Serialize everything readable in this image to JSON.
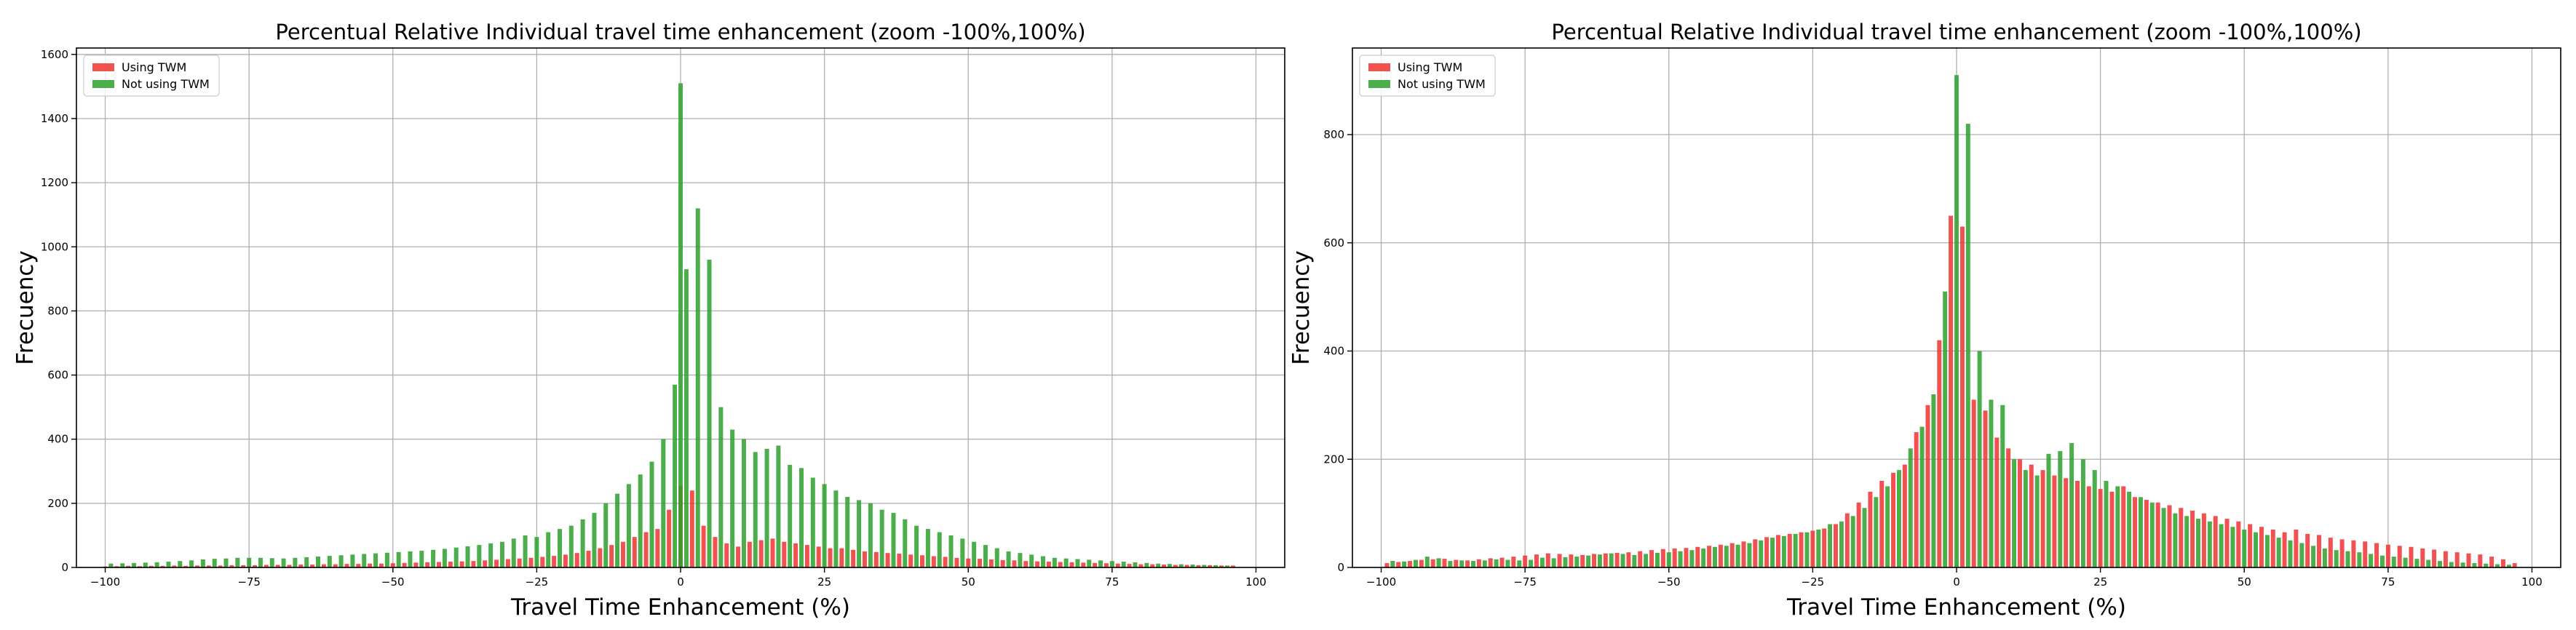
{
  "colors": {
    "using_twm": "#f03232",
    "not_using_twm": "#2ca02c"
  },
  "chart_data": [
    {
      "type": "bar",
      "title": "Percentual Relative Individual travel time enhancement (zoom -100%,100%)",
      "xlabel": "Travel Time Enhancement (%)",
      "ylabel": "Frecuency",
      "xlim": [
        -105,
        105
      ],
      "ylim": [
        0,
        1620
      ],
      "xticks": [
        -100,
        -75,
        -50,
        -25,
        0,
        25,
        50,
        75,
        100
      ],
      "yticks": [
        0,
        200,
        400,
        600,
        800,
        1000,
        1200,
        1400,
        1600
      ],
      "grid": true,
      "legend_position": "top-left",
      "bin_width": 2.0,
      "series": [
        {
          "name": "Using TWM",
          "color": "#f03232",
          "x": [
            -100,
            -98,
            -96,
            -94,
            -92,
            -90,
            -88,
            -86,
            -84,
            -82,
            -80,
            -78,
            -76,
            -74,
            -72,
            -70,
            -68,
            -66,
            -64,
            -62,
            -60,
            -58,
            -56,
            -54,
            -52,
            -50,
            -48,
            -46,
            -44,
            -42,
            -40,
            -38,
            -36,
            -34,
            -32,
            -30,
            -28,
            -26,
            -24,
            -22,
            -20,
            -18,
            -16,
            -14,
            -12,
            -10,
            -8,
            -6,
            -4,
            -2,
            0,
            2,
            4,
            6,
            8,
            10,
            12,
            14,
            16,
            18,
            20,
            22,
            24,
            26,
            28,
            30,
            32,
            34,
            36,
            38,
            40,
            42,
            44,
            46,
            48,
            50,
            52,
            54,
            56,
            58,
            60,
            62,
            64,
            66,
            68,
            70,
            72,
            74,
            76,
            78,
            80,
            82,
            84,
            86,
            88,
            90,
            92,
            94,
            96
          ],
          "values": [
            3,
            4,
            5,
            4,
            5,
            5,
            6,
            5,
            6,
            6,
            6,
            7,
            7,
            7,
            8,
            8,
            8,
            9,
            9,
            10,
            10,
            11,
            11,
            12,
            12,
            13,
            14,
            15,
            16,
            17,
            18,
            19,
            20,
            22,
            24,
            26,
            28,
            30,
            33,
            36,
            40,
            45,
            52,
            60,
            70,
            80,
            95,
            110,
            120,
            180,
            255,
            240,
            130,
            95,
            75,
            65,
            80,
            85,
            90,
            80,
            75,
            70,
            65,
            60,
            60,
            55,
            50,
            48,
            45,
            43,
            40,
            38,
            35,
            33,
            30,
            28,
            27,
            25,
            23,
            22,
            20,
            19,
            18,
            17,
            16,
            15,
            14,
            13,
            12,
            11,
            10,
            10,
            9,
            8,
            8,
            7,
            7,
            6,
            6
          ]
        },
        {
          "name": "Not using TWM",
          "color": "#2ca02c",
          "x": [
            -99,
            -97,
            -95,
            -93,
            -91,
            -89,
            -87,
            -85,
            -83,
            -81,
            -79,
            -77,
            -75,
            -73,
            -71,
            -69,
            -67,
            -65,
            -63,
            -61,
            -59,
            -57,
            -55,
            -53,
            -51,
            -49,
            -47,
            -45,
            -43,
            -41,
            -39,
            -37,
            -35,
            -33,
            -31,
            -29,
            -27,
            -25,
            -23,
            -21,
            -19,
            -17,
            -15,
            -13,
            -11,
            -9,
            -7,
            -5,
            -3,
            -1,
            0,
            1,
            3,
            5,
            7,
            9,
            11,
            13,
            15,
            17,
            19,
            21,
            23,
            25,
            27,
            29,
            31,
            33,
            35,
            37,
            39,
            41,
            43,
            45,
            47,
            49,
            51,
            53,
            55,
            57,
            59,
            61,
            63,
            65,
            67,
            69,
            71,
            73,
            75,
            77,
            79,
            81,
            83,
            85,
            87,
            89,
            91,
            93,
            95
          ],
          "values": [
            12,
            13,
            14,
            15,
            16,
            18,
            20,
            22,
            25,
            27,
            28,
            30,
            30,
            30,
            29,
            28,
            30,
            32,
            34,
            36,
            38,
            40,
            42,
            44,
            46,
            48,
            50,
            52,
            55,
            58,
            62,
            66,
            70,
            75,
            80,
            90,
            100,
            95,
            110,
            120,
            130,
            150,
            170,
            200,
            230,
            260,
            290,
            330,
            400,
            570,
            1510,
            930,
            1120,
            960,
            500,
            430,
            400,
            360,
            370,
            380,
            320,
            310,
            280,
            260,
            240,
            220,
            210,
            200,
            180,
            170,
            150,
            130,
            120,
            110,
            100,
            90,
            80,
            70,
            60,
            50,
            45,
            40,
            35,
            30,
            28,
            26,
            24,
            22,
            20,
            18,
            16,
            14,
            12,
            11,
            10,
            9,
            8,
            7,
            6
          ]
        }
      ]
    },
    {
      "type": "bar",
      "title": "Percentual Relative Individual travel time enhancement (zoom -100%,100%)",
      "xlabel": "Travel Time Enhancement (%)",
      "ylabel": "Frecuency",
      "xlim": [
        -105,
        105
      ],
      "ylim": [
        0,
        960
      ],
      "xticks": [
        -100,
        -75,
        -50,
        -25,
        0,
        25,
        50,
        75,
        100
      ],
      "yticks": [
        0,
        200,
        400,
        600,
        800
      ],
      "grid": true,
      "legend_position": "top-left",
      "bin_width": 2.0,
      "series": [
        {
          "name": "Using TWM",
          "color": "#f03232",
          "x": [
            -99,
            -97,
            -95,
            -93,
            -91,
            -89,
            -87,
            -85,
            -83,
            -81,
            -79,
            -77,
            -75,
            -73,
            -71,
            -69,
            -67,
            -65,
            -63,
            -61,
            -59,
            -57,
            -55,
            -53,
            -51,
            -49,
            -47,
            -45,
            -43,
            -41,
            -39,
            -37,
            -35,
            -33,
            -31,
            -29,
            -27,
            -25,
            -23,
            -21,
            -19,
            -17,
            -15,
            -13,
            -11,
            -9,
            -7,
            -5,
            -3,
            -1,
            1,
            3,
            5,
            7,
            9,
            11,
            13,
            15,
            17,
            19,
            21,
            23,
            25,
            27,
            29,
            31,
            33,
            35,
            37,
            39,
            41,
            43,
            45,
            47,
            49,
            51,
            53,
            55,
            57,
            59,
            61,
            63,
            65,
            67,
            69,
            71,
            73,
            75,
            77,
            79,
            81,
            83,
            85,
            87,
            89,
            91,
            93,
            95,
            97
          ],
          "values": [
            8,
            10,
            12,
            14,
            15,
            16,
            14,
            13,
            15,
            17,
            18,
            20,
            22,
            24,
            26,
            25,
            24,
            23,
            25,
            26,
            27,
            28,
            30,
            32,
            34,
            35,
            36,
            38,
            40,
            42,
            45,
            48,
            52,
            56,
            60,
            62,
            65,
            68,
            72,
            80,
            100,
            120,
            140,
            160,
            175,
            190,
            250,
            300,
            420,
            650,
            630,
            310,
            290,
            240,
            220,
            200,
            190,
            180,
            170,
            165,
            160,
            150,
            145,
            140,
            150,
            130,
            125,
            120,
            115,
            110,
            105,
            100,
            95,
            90,
            85,
            80,
            75,
            70,
            65,
            70,
            62,
            60,
            55,
            52,
            50,
            48,
            45,
            42,
            40,
            38,
            35,
            33,
            30,
            28,
            26,
            24,
            20,
            15,
            8
          ]
        },
        {
          "name": "Not using TWM",
          "color": "#2ca02c",
          "x": [
            -98,
            -96,
            -94,
            -92,
            -90,
            -88,
            -86,
            -84,
            -82,
            -80,
            -78,
            -76,
            -74,
            -72,
            -70,
            -68,
            -66,
            -64,
            -62,
            -60,
            -58,
            -56,
            -54,
            -52,
            -50,
            -48,
            -46,
            -44,
            -42,
            -40,
            -38,
            -36,
            -34,
            -32,
            -30,
            -28,
            -26,
            -24,
            -22,
            -20,
            -18,
            -16,
            -14,
            -12,
            -10,
            -8,
            -6,
            -4,
            -2,
            0,
            2,
            4,
            6,
            8,
            10,
            12,
            14,
            16,
            18,
            20,
            22,
            24,
            26,
            28,
            30,
            32,
            34,
            36,
            38,
            40,
            42,
            44,
            46,
            48,
            50,
            52,
            54,
            56,
            58,
            60,
            62,
            64,
            66,
            68,
            70,
            72,
            74,
            76,
            78,
            80,
            82,
            84,
            86,
            88,
            90,
            92,
            94,
            96
          ],
          "values": [
            12,
            11,
            14,
            20,
            17,
            12,
            13,
            12,
            13,
            15,
            14,
            13,
            14,
            18,
            17,
            19,
            20,
            22,
            24,
            26,
            25,
            23,
            25,
            27,
            28,
            30,
            32,
            35,
            38,
            40,
            42,
            45,
            50,
            55,
            58,
            62,
            65,
            70,
            80,
            85,
            95,
            110,
            130,
            150,
            180,
            220,
            260,
            320,
            510,
            910,
            820,
            400,
            310,
            300,
            200,
            180,
            170,
            210,
            215,
            230,
            200,
            180,
            160,
            150,
            140,
            130,
            120,
            110,
            100,
            95,
            90,
            85,
            80,
            75,
            70,
            65,
            60,
            55,
            50,
            45,
            40,
            35,
            32,
            30,
            28,
            25,
            22,
            20,
            18,
            16,
            14,
            12,
            10,
            9,
            8,
            7,
            6,
            5
          ]
        }
      ]
    }
  ]
}
